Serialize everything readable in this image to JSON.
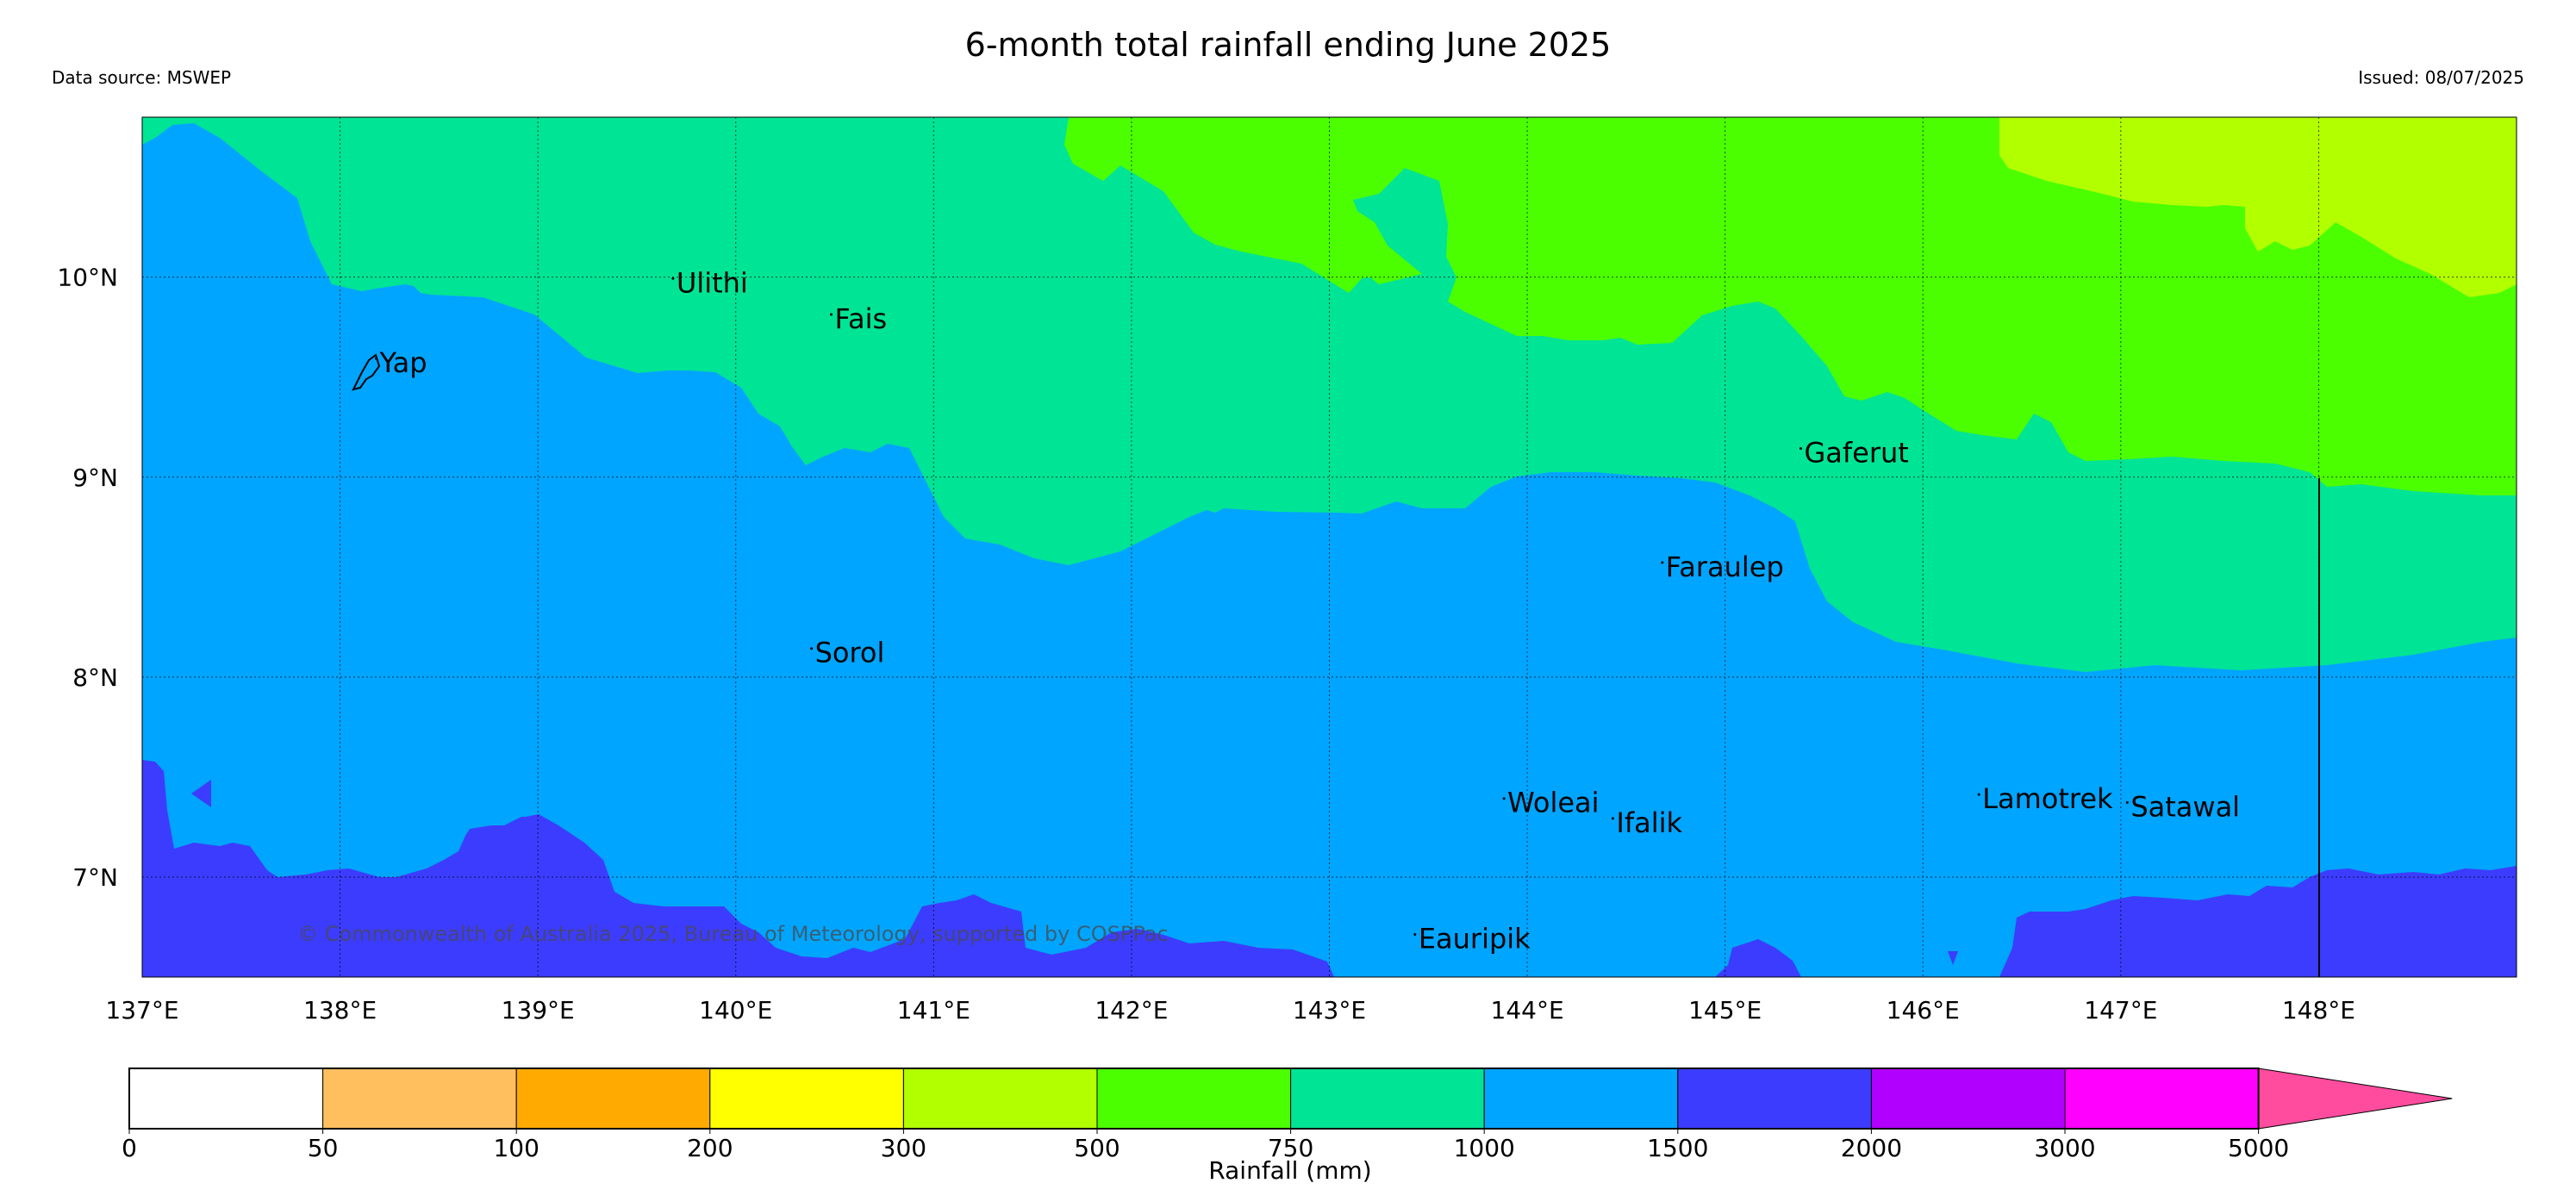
{
  "title": "6-month total rainfall ending June 2025",
  "data_source": "Data source: MSWEP",
  "issued": "Issued: 08/07/2025",
  "copyright": "© Commonwealth of Australia 2025, Bureau of Meteorology, supported by COSPPac",
  "map": {
    "lon_range": [
      137,
      149
    ],
    "lat_range": [
      6.5,
      10.8
    ],
    "lon_ticks": [
      "137°E",
      "138°E",
      "139°E",
      "140°E",
      "141°E",
      "142°E",
      "143°E",
      "144°E",
      "145°E",
      "146°E",
      "147°E",
      "148°E"
    ],
    "lat_ticks": [
      "10°N",
      "9°N",
      "8°N",
      "7°N"
    ],
    "grid": true,
    "places": [
      {
        "name": "Ulithi",
        "lon": 139.7,
        "lat": 9.95
      },
      {
        "name": "Fais",
        "lon": 140.5,
        "lat": 9.77
      },
      {
        "name": "Yap",
        "lon": 138.2,
        "lat": 9.55
      },
      {
        "name": "Gaferut",
        "lon": 145.4,
        "lat": 9.1
      },
      {
        "name": "Faraulep",
        "lon": 144.7,
        "lat": 8.53
      },
      {
        "name": "Sorol",
        "lon": 140.4,
        "lat": 8.1
      },
      {
        "name": "Woleai",
        "lon": 143.9,
        "lat": 7.35
      },
      {
        "name": "Ifalik",
        "lon": 144.45,
        "lat": 7.25
      },
      {
        "name": "Lamotrek",
        "lon": 146.3,
        "lat": 7.37
      },
      {
        "name": "Satawal",
        "lon": 147.05,
        "lat": 7.33
      },
      {
        "name": "Eauripik",
        "lon": 143.45,
        "lat": 6.67
      }
    ]
  },
  "colorbar": {
    "label": "Rainfall (mm)",
    "bins": [
      {
        "tick": "0",
        "color": "#ffffff"
      },
      {
        "tick": "50",
        "color": "#ffbf5f"
      },
      {
        "tick": "100",
        "color": "#ffaa00"
      },
      {
        "tick": "200",
        "color": "#ffff00"
      },
      {
        "tick": "300",
        "color": "#b2ff00"
      },
      {
        "tick": "500",
        "color": "#4cff00"
      },
      {
        "tick": "750",
        "color": "#00e496"
      },
      {
        "tick": "1000",
        "color": "#00a5ff"
      },
      {
        "tick": "1500",
        "color": "#3c3cff"
      },
      {
        "tick": "2000",
        "color": "#b200ff"
      },
      {
        "tick": "3000",
        "color": "#ff00ff"
      },
      {
        "tick": "5000",
        "color": "#ff4c9f"
      }
    ]
  }
}
